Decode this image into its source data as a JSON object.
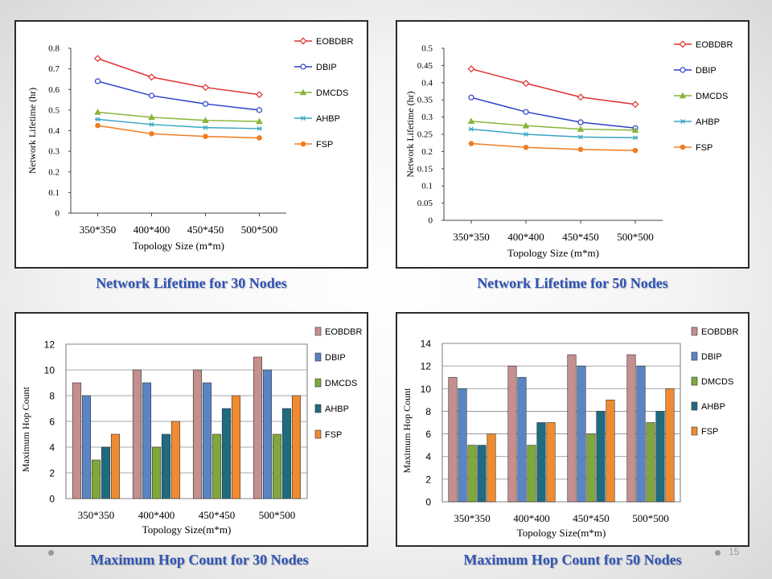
{
  "slide": {
    "number": "15"
  },
  "captions": [
    "Network Lifetime for 30 Nodes",
    "Network Lifetime for 50 Nodes",
    "Maximum Hop Count for 30 Nodes",
    "Maximum Hop Count for 50 Nodes"
  ],
  "chart_data": [
    {
      "type": "line",
      "title": "Network Lifetime for 30 Nodes",
      "xlabel": "Topology Size (m*m)",
      "ylabel": "Network Lifetime (hr)",
      "categories": [
        "350*350",
        "400*400",
        "450*450",
        "500*500"
      ],
      "ylim": [
        0,
        0.8
      ],
      "yticks": [
        "0",
        "0.1",
        "0.2",
        "0.3",
        "0.4",
        "0.5",
        "0.6",
        "0.7",
        "0.8"
      ],
      "grid": false,
      "legend": "right",
      "series": [
        {
          "name": "EOBDBR",
          "color": "#e0312f",
          "marker": "diamond",
          "values": [
            0.75,
            0.66,
            0.61,
            0.575
          ]
        },
        {
          "name": "DBIP",
          "color": "#2b3fc9",
          "marker": "circle",
          "values": [
            0.64,
            0.57,
            0.53,
            0.5
          ]
        },
        {
          "name": "DMCDS",
          "color": "#8ab43a",
          "marker": "triangle",
          "values": [
            0.49,
            0.465,
            0.45,
            0.445
          ]
        },
        {
          "name": "AHBP",
          "color": "#36a6c4",
          "marker": "star",
          "values": [
            0.455,
            0.43,
            0.415,
            0.41
          ]
        },
        {
          "name": "FSP",
          "color": "#f07d22",
          "marker": "dot",
          "values": [
            0.425,
            0.385,
            0.372,
            0.365
          ]
        }
      ]
    },
    {
      "type": "line",
      "title": "Network Lifetime for 50 Nodes",
      "xlabel": "Topology Size (m*m)",
      "ylabel": "Network Lifetime (hr)",
      "categories": [
        "350*350",
        "400*400",
        "450*450",
        "500*500"
      ],
      "ylim": [
        0,
        0.5
      ],
      "yticks": [
        "0",
        "0.05",
        "0.1",
        "0.15",
        "0.2",
        "0.25",
        "0.3",
        "0.35",
        "0.4",
        "0.45",
        "0.5"
      ],
      "grid": false,
      "legend": "right",
      "series": [
        {
          "name": "EOBDBR",
          "color": "#e0312f",
          "marker": "diamond",
          "values": [
            0.44,
            0.398,
            0.358,
            0.337
          ]
        },
        {
          "name": "DBIP",
          "color": "#2b3fc9",
          "marker": "circle",
          "values": [
            0.357,
            0.315,
            0.285,
            0.268
          ]
        },
        {
          "name": "DMCDS",
          "color": "#8ab43a",
          "marker": "triangle",
          "values": [
            0.288,
            0.275,
            0.265,
            0.262
          ]
        },
        {
          "name": "AHBP",
          "color": "#36a6c4",
          "marker": "star",
          "values": [
            0.265,
            0.25,
            0.242,
            0.24
          ]
        },
        {
          "name": "FSP",
          "color": "#f07d22",
          "marker": "dot",
          "values": [
            0.223,
            0.212,
            0.206,
            0.203
          ]
        }
      ]
    },
    {
      "type": "bar",
      "title": "Maximum Hop Count for 30 Nodes",
      "xlabel": "Topology Size(m*m)",
      "ylabel": "Maximum Hop Count",
      "categories": [
        "350*350",
        "400*400",
        "450*450",
        "500*500"
      ],
      "ylim": [
        0,
        12
      ],
      "yticks": [
        "0",
        "2",
        "4",
        "6",
        "8",
        "10",
        "12"
      ],
      "grid": true,
      "legend": "right",
      "series": [
        {
          "name": "EOBDBR",
          "color": "#c48f8f",
          "values": [
            9,
            10,
            10,
            11
          ]
        },
        {
          "name": "DBIP",
          "color": "#5b84c4",
          "values": [
            8,
            9,
            9,
            10
          ]
        },
        {
          "name": "DMCDS",
          "color": "#7fa83c",
          "values": [
            3,
            4,
            5,
            5
          ]
        },
        {
          "name": "AHBP",
          "color": "#1f6b80",
          "values": [
            4,
            5,
            7,
            7
          ]
        },
        {
          "name": "FSP",
          "color": "#ef8b32",
          "values": [
            5,
            6,
            8,
            8
          ]
        }
      ]
    },
    {
      "type": "bar",
      "title": "Maximum Hop Count for 50 Nodes",
      "xlabel": "Topology Size(m*m)",
      "ylabel": "Maximum Hop Count",
      "categories": [
        "350*350",
        "400*400",
        "450*450",
        "500*500"
      ],
      "ylim": [
        0,
        14
      ],
      "yticks": [
        "0",
        "2",
        "4",
        "6",
        "8",
        "10",
        "12",
        "14"
      ],
      "grid": true,
      "legend": "right",
      "series": [
        {
          "name": "EOBDBR",
          "color": "#c48f8f",
          "values": [
            11,
            12,
            13,
            13
          ]
        },
        {
          "name": "DBIP",
          "color": "#5b84c4",
          "values": [
            10,
            11,
            12,
            12
          ]
        },
        {
          "name": "DMCDS",
          "color": "#7fa83c",
          "values": [
            5,
            5,
            6,
            7
          ]
        },
        {
          "name": "AHBP",
          "color": "#1f6b80",
          "values": [
            5,
            7,
            8,
            8
          ]
        },
        {
          "name": "FSP",
          "color": "#ef8b32",
          "values": [
            6,
            7,
            9,
            10
          ]
        }
      ]
    }
  ]
}
